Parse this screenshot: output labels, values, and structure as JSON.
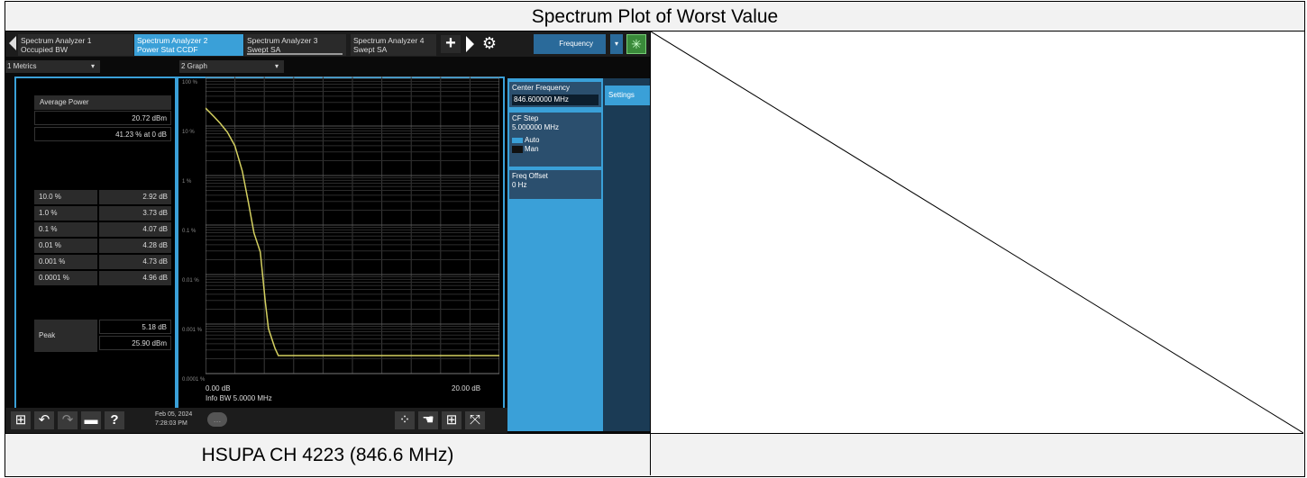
{
  "title": "Spectrum Plot of Worst Value",
  "caption": "HSUPA CH 4223 (846.6 MHz)",
  "tabs": [
    {
      "line1": "Spectrum Analyzer 1",
      "line2": "Occupied BW"
    },
    {
      "line1": "Spectrum Analyzer 2",
      "line2": "Power Stat CCDF"
    },
    {
      "line1": "Spectrum Analyzer 3",
      "line2": "Swept SA"
    },
    {
      "line1": "Spectrum Analyzer 4",
      "line2": "Swept SA"
    }
  ],
  "toolbar": {
    "plus": "+",
    "frequency": "Frequency",
    "dropdown": "▾",
    "gear": "⚙",
    "spin": "✳"
  },
  "metrics": {
    "header": "1 Metrics",
    "average_label": "Average Power",
    "average_dbm": "20.72 dBm",
    "average_pct": "41.23 % at 0 dB",
    "rows": [
      {
        "p": "10.0 %",
        "v": "2.92 dB"
      },
      {
        "p": "1.0 %",
        "v": "3.73 dB"
      },
      {
        "p": "0.1 %",
        "v": "4.07 dB"
      },
      {
        "p": "0.01 %",
        "v": "4.28 dB"
      },
      {
        "p": "0.001 %",
        "v": "4.73 dB"
      },
      {
        "p": "0.0001 %",
        "v": "4.96 dB"
      }
    ],
    "peak_label": "Peak",
    "peak_db": "5.18 dB",
    "peak_dbm": "25.90 dBm"
  },
  "graph": {
    "header": "2 Graph",
    "ylabels": [
      "100 %",
      "10 %",
      "1 %",
      "0.1 %",
      "0.01 %",
      "0.001 %",
      "0.0001 %"
    ],
    "xstart": "0.00 dB",
    "xend": "20.00 dB",
    "info": "Info BW 5.0000 MHz"
  },
  "menu": {
    "center_label": "Center Frequency",
    "center_value": "846.600000 MHz",
    "cfstep_label": "CF Step",
    "cfstep_value": "5.000000 MHz",
    "auto": "Auto",
    "man": "Man",
    "offset_label": "Freq Offset",
    "offset_value": "0 Hz",
    "settings": "Settings"
  },
  "statusbar": {
    "date": "Feb 05, 2024",
    "time": "7:28:03 PM",
    "help": "?",
    "undo": "↶",
    "redo": "↷"
  }
}
